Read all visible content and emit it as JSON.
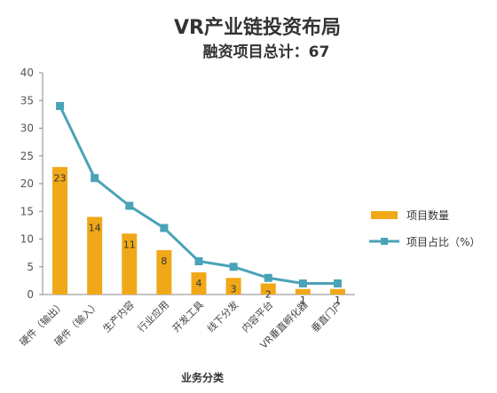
{
  "chart_data": {
    "type": "bar",
    "title": "VR产业链投资布局",
    "subtitle": "融资项目总计：67",
    "xlabel": "业务分类",
    "ylabel": "",
    "ylim": [
      0,
      40
    ],
    "yticks": [
      0,
      5,
      10,
      15,
      20,
      25,
      30,
      35,
      40
    ],
    "grid": false,
    "legend_position": "right",
    "categories": [
      "硬件（输出）",
      "硬件（输入）",
      "生产内容",
      "行业应用",
      "开发工具",
      "线下分发",
      "内容平台",
      "VR垂直孵化器",
      "垂直门户"
    ],
    "series": [
      {
        "name": "项目数量",
        "type": "bar",
        "color": "#F0A818",
        "values": [
          23,
          14,
          11,
          8,
          4,
          3,
          2,
          1,
          1
        ]
      },
      {
        "name": "项目占比（%）",
        "type": "line",
        "color": "#4AA3B8",
        "values": [
          34,
          21,
          16,
          12,
          6,
          5,
          3,
          2,
          2
        ]
      }
    ]
  }
}
